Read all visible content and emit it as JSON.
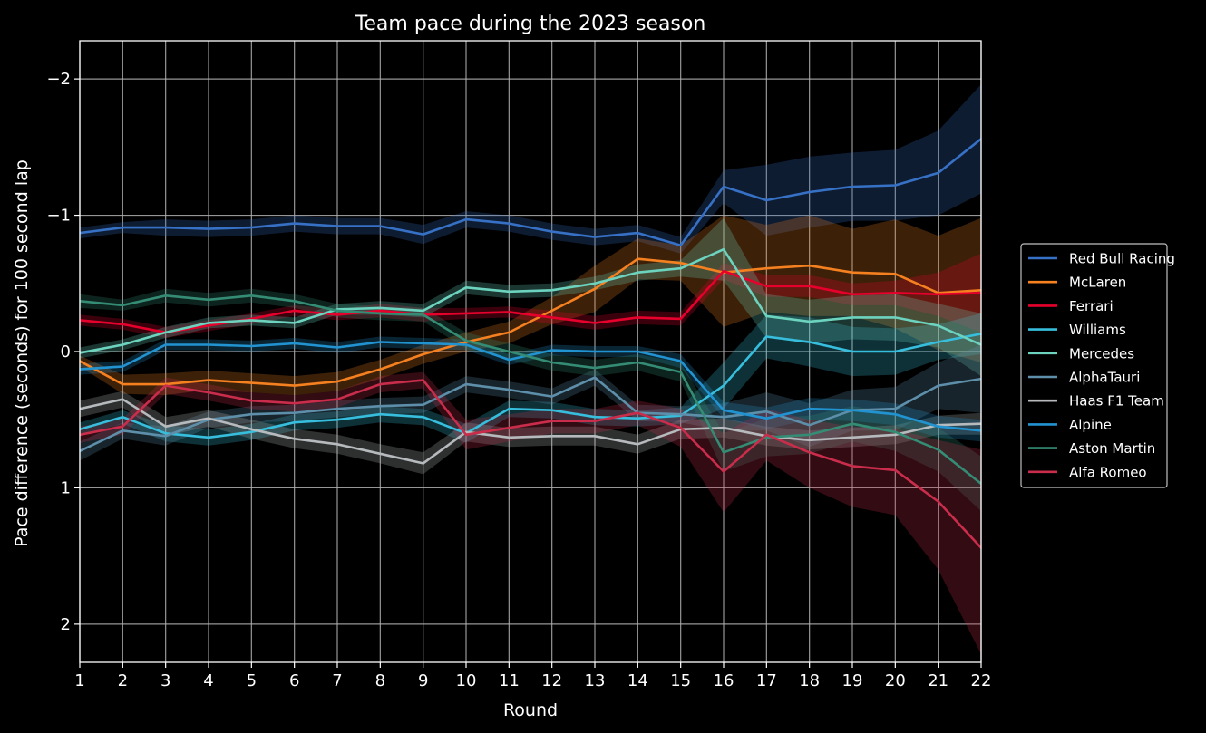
{
  "chart_data": {
    "type": "line",
    "title": "Team pace during the 2023 season",
    "xlabel": "Round",
    "ylabel": "Pace difference (seconds) for 100 second lap",
    "x": [
      1,
      2,
      3,
      4,
      5,
      6,
      7,
      8,
      9,
      10,
      11,
      12,
      13,
      14,
      15,
      16,
      17,
      18,
      19,
      20,
      21,
      22
    ],
    "xlim": [
      1,
      22
    ],
    "ylim": [
      2.28,
      -2.28
    ],
    "y_inverted": true,
    "y_ticks": [
      -2,
      -1,
      0,
      1,
      2
    ],
    "y_tick_labels": [
      "−2",
      "−1",
      "0",
      "1",
      "2"
    ],
    "grid": true,
    "legend_placement": "center-right outside",
    "background": "#000000",
    "series": [
      {
        "name": "Red Bull Racing",
        "color": "#3671C6",
        "band": 0.06,
        "values": [
          -0.87,
          -0.91,
          -0.91,
          -0.9,
          -0.91,
          -0.94,
          -0.92,
          -0.92,
          -0.86,
          -0.97,
          -0.94,
          -0.88,
          -0.84,
          -0.87,
          -0.78,
          -1.21,
          -1.11,
          -1.17,
          -1.21,
          -1.22,
          -1.31,
          -1.56
        ],
        "band_upper": [
          -0.91,
          -0.95,
          -0.97,
          -0.96,
          -0.97,
          -1.0,
          -0.98,
          -0.98,
          -0.93,
          -1.03,
          -1.0,
          -0.94,
          -0.9,
          -0.93,
          -0.84,
          -1.33,
          -1.37,
          -1.43,
          -1.46,
          -1.48,
          -1.62,
          -1.96
        ],
        "band_lower": [
          -0.83,
          -0.87,
          -0.85,
          -0.84,
          -0.85,
          -0.88,
          -0.86,
          -0.86,
          -0.79,
          -0.91,
          -0.88,
          -0.82,
          -0.78,
          -0.81,
          -0.72,
          -1.09,
          -0.85,
          -0.91,
          -0.96,
          -0.96,
          -1.0,
          -1.16
        ]
      },
      {
        "name": "McLaren",
        "color": "#F58020",
        "values": [
          0.07,
          0.24,
          0.24,
          0.21,
          0.23,
          0.25,
          0.22,
          0.13,
          0.02,
          -0.07,
          -0.14,
          -0.3,
          -0.46,
          -0.68,
          -0.65,
          -0.58,
          -0.61,
          -0.63,
          -0.58,
          -0.57,
          -0.43,
          -0.45
        ],
        "band_upper": [
          0.03,
          0.17,
          0.16,
          0.14,
          0.16,
          0.18,
          0.15,
          0.06,
          -0.05,
          -0.14,
          -0.22,
          -0.4,
          -0.63,
          -0.83,
          -0.78,
          -1.0,
          -0.93,
          -1.0,
          -0.9,
          -0.97,
          -0.85,
          -0.98
        ],
        "band_lower": [
          0.11,
          0.31,
          0.32,
          0.28,
          0.3,
          0.32,
          0.29,
          0.2,
          0.09,
          0.0,
          -0.06,
          -0.2,
          -0.29,
          -0.53,
          -0.52,
          -0.18,
          -0.29,
          -0.26,
          -0.26,
          -0.17,
          -0.01,
          0.08
        ]
      },
      {
        "name": "Ferrari",
        "color": "#E8002D",
        "values": [
          -0.23,
          -0.2,
          -0.14,
          -0.19,
          -0.24,
          -0.3,
          -0.27,
          -0.3,
          -0.27,
          -0.28,
          -0.29,
          -0.25,
          -0.21,
          -0.25,
          -0.24,
          -0.59,
          -0.48,
          -0.48,
          -0.42,
          -0.43,
          -0.42,
          -0.43
        ],
        "band_upper": [
          -0.27,
          -0.24,
          -0.18,
          -0.23,
          -0.28,
          -0.34,
          -0.31,
          -0.35,
          -0.32,
          -0.32,
          -0.33,
          -0.3,
          -0.26,
          -0.3,
          -0.29,
          -0.65,
          -0.56,
          -0.56,
          -0.5,
          -0.52,
          -0.58,
          -0.72
        ],
        "band_lower": [
          -0.19,
          -0.16,
          -0.1,
          -0.15,
          -0.2,
          -0.26,
          -0.23,
          -0.25,
          -0.22,
          -0.24,
          -0.25,
          -0.2,
          -0.16,
          -0.2,
          -0.19,
          -0.53,
          -0.4,
          -0.4,
          -0.34,
          -0.34,
          -0.26,
          -0.14
        ]
      },
      {
        "name": "Williams",
        "color": "#37BEDD",
        "values": [
          0.57,
          0.48,
          0.6,
          0.63,
          0.59,
          0.52,
          0.5,
          0.46,
          0.48,
          0.6,
          0.42,
          0.43,
          0.48,
          0.49,
          0.47,
          0.25,
          -0.11,
          -0.07,
          0.0,
          0.0,
          -0.07,
          -0.13
        ],
        "band_upper": [
          0.52,
          0.43,
          0.54,
          0.57,
          0.53,
          0.46,
          0.44,
          0.4,
          0.42,
          0.53,
          0.36,
          0.37,
          0.42,
          0.43,
          0.41,
          0.08,
          -0.27,
          -0.25,
          -0.18,
          -0.17,
          -0.2,
          -0.28
        ],
        "band_lower": [
          0.62,
          0.53,
          0.66,
          0.69,
          0.65,
          0.58,
          0.56,
          0.52,
          0.54,
          0.67,
          0.48,
          0.49,
          0.54,
          0.55,
          0.53,
          0.42,
          0.05,
          0.11,
          0.18,
          0.17,
          0.06,
          0.02
        ]
      },
      {
        "name": "Mercedes",
        "color": "#6CD3BF",
        "values": [
          0.01,
          -0.05,
          -0.14,
          -0.21,
          -0.23,
          -0.21,
          -0.31,
          -0.32,
          -0.3,
          -0.47,
          -0.44,
          -0.45,
          -0.5,
          -0.58,
          -0.61,
          -0.75,
          -0.26,
          -0.22,
          -0.25,
          -0.25,
          -0.19,
          -0.05
        ],
        "band_upper": [
          -0.03,
          -0.09,
          -0.18,
          -0.25,
          -0.27,
          -0.25,
          -0.35,
          -0.37,
          -0.35,
          -0.52,
          -0.49,
          -0.5,
          -0.55,
          -0.64,
          -0.67,
          -0.98,
          -0.42,
          -0.38,
          -0.41,
          -0.42,
          -0.35,
          -0.28
        ],
        "band_lower": [
          0.05,
          -0.01,
          -0.1,
          -0.17,
          -0.19,
          -0.17,
          -0.27,
          -0.27,
          -0.25,
          -0.42,
          -0.39,
          -0.4,
          -0.45,
          -0.52,
          -0.55,
          -0.52,
          -0.1,
          -0.06,
          -0.09,
          -0.08,
          -0.03,
          0.18
        ]
      },
      {
        "name": "AlphaTauri",
        "color": "#5E8FAA",
        "values": [
          0.73,
          0.58,
          0.62,
          0.5,
          0.46,
          0.45,
          0.42,
          0.4,
          0.39,
          0.24,
          0.28,
          0.33,
          0.19,
          0.45,
          0.46,
          0.48,
          0.44,
          0.54,
          0.43,
          0.42,
          0.25,
          0.2
        ],
        "band_upper": [
          0.66,
          0.52,
          0.55,
          0.44,
          0.4,
          0.39,
          0.36,
          0.34,
          0.33,
          0.18,
          0.22,
          0.27,
          0.13,
          0.39,
          0.4,
          0.38,
          0.3,
          0.38,
          0.28,
          0.26,
          0.08,
          -0.05
        ],
        "band_lower": [
          0.8,
          0.64,
          0.69,
          0.56,
          0.52,
          0.51,
          0.48,
          0.46,
          0.45,
          0.3,
          0.34,
          0.39,
          0.25,
          0.51,
          0.52,
          0.58,
          0.58,
          0.7,
          0.58,
          0.58,
          0.42,
          0.45
        ]
      },
      {
        "name": "Haas F1 Team",
        "color": "#B6BABD",
        "values": [
          0.42,
          0.35,
          0.55,
          0.49,
          0.57,
          0.64,
          0.68,
          0.75,
          0.82,
          0.59,
          0.63,
          0.62,
          0.62,
          0.68,
          0.57,
          0.56,
          0.62,
          0.65,
          0.63,
          0.61,
          0.54,
          0.53
        ],
        "band_upper": [
          0.36,
          0.29,
          0.48,
          0.43,
          0.5,
          0.57,
          0.61,
          0.68,
          0.74,
          0.52,
          0.56,
          0.55,
          0.55,
          0.61,
          0.5,
          0.49,
          0.55,
          0.58,
          0.56,
          0.54,
          0.47,
          0.45
        ],
        "band_lower": [
          0.48,
          0.41,
          0.62,
          0.55,
          0.64,
          0.71,
          0.75,
          0.82,
          0.9,
          0.66,
          0.7,
          0.69,
          0.69,
          0.75,
          0.64,
          0.63,
          0.69,
          0.72,
          0.7,
          0.68,
          0.61,
          0.61
        ]
      },
      {
        "name": "Alpine",
        "color": "#2293D1",
        "values": [
          0.13,
          0.11,
          -0.05,
          -0.05,
          -0.04,
          -0.06,
          -0.03,
          -0.07,
          -0.06,
          -0.05,
          0.06,
          -0.01,
          0.0,
          0.0,
          0.07,
          0.43,
          0.49,
          0.42,
          0.43,
          0.46,
          0.55,
          0.58
        ],
        "band_upper": [
          0.09,
          0.07,
          -0.09,
          -0.09,
          -0.08,
          -0.1,
          -0.07,
          -0.11,
          -0.1,
          -0.09,
          0.02,
          -0.05,
          -0.04,
          -0.04,
          0.02,
          0.37,
          0.41,
          0.34,
          0.35,
          0.38,
          0.47,
          0.5
        ],
        "band_lower": [
          0.17,
          0.15,
          -0.01,
          -0.01,
          0.0,
          -0.02,
          0.01,
          -0.03,
          -0.02,
          -0.01,
          0.1,
          0.03,
          0.04,
          0.04,
          0.12,
          0.49,
          0.57,
          0.5,
          0.51,
          0.54,
          0.63,
          0.66
        ]
      },
      {
        "name": "Aston Martin",
        "color": "#358C75",
        "values": [
          -0.37,
          -0.34,
          -0.41,
          -0.38,
          -0.41,
          -0.37,
          -0.3,
          -0.28,
          -0.27,
          -0.08,
          0.0,
          0.08,
          0.12,
          0.08,
          0.15,
          0.74,
          0.63,
          0.61,
          0.53,
          0.59,
          0.72,
          0.97
        ],
        "band_upper": [
          -0.42,
          -0.38,
          -0.46,
          -0.43,
          -0.46,
          -0.42,
          -0.35,
          -0.33,
          -0.32,
          -0.14,
          -0.06,
          0.02,
          0.06,
          0.02,
          0.08,
          0.6,
          0.49,
          0.47,
          0.4,
          0.45,
          0.56,
          0.77
        ],
        "band_lower": [
          -0.32,
          -0.3,
          -0.36,
          -0.33,
          -0.36,
          -0.32,
          -0.25,
          -0.23,
          -0.22,
          -0.02,
          0.06,
          0.14,
          0.18,
          0.14,
          0.22,
          0.88,
          0.77,
          0.75,
          0.66,
          0.73,
          0.88,
          1.17
        ]
      },
      {
        "name": "Alfa Romeo",
        "color": "#C92D4B",
        "values": [
          0.61,
          0.55,
          0.25,
          0.3,
          0.36,
          0.38,
          0.35,
          0.24,
          0.21,
          0.61,
          0.56,
          0.51,
          0.51,
          0.45,
          0.56,
          0.88,
          0.61,
          0.74,
          0.84,
          0.87,
          1.1,
          1.44
        ],
        "band_upper": [
          0.55,
          0.49,
          0.19,
          0.24,
          0.3,
          0.32,
          0.29,
          0.18,
          0.15,
          0.5,
          0.46,
          0.42,
          0.42,
          0.36,
          0.42,
          0.6,
          0.42,
          0.5,
          0.55,
          0.57,
          0.65,
          0.72
        ],
        "band_lower": [
          0.67,
          0.61,
          0.31,
          0.36,
          0.42,
          0.44,
          0.41,
          0.3,
          0.27,
          0.72,
          0.66,
          0.6,
          0.6,
          0.54,
          0.7,
          1.18,
          0.8,
          1.0,
          1.14,
          1.2,
          1.6,
          2.22
        ]
      }
    ]
  }
}
